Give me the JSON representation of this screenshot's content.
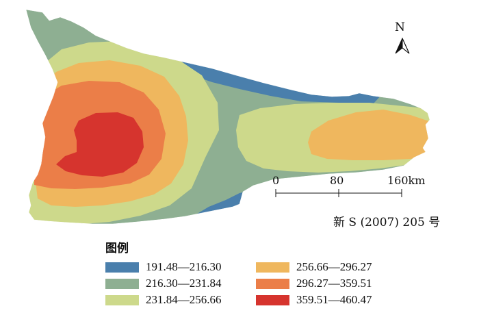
{
  "north_arrow": {
    "label": "N"
  },
  "scale_bar": {
    "ticks": [
      "0",
      "80",
      "160km"
    ]
  },
  "map_number": "新 S (2007) 205 号",
  "legend": {
    "title": "图例",
    "classes": [
      {
        "label": "191.48—216.30",
        "color": "#4a7fac"
      },
      {
        "label": "216.30—231.84",
        "color": "#8eaf92"
      },
      {
        "label": "231.84—256.66",
        "color": "#cdd98b"
      },
      {
        "label": "256.66—296.27",
        "color": "#efb75e"
      },
      {
        "label": "296.27—359.51",
        "color": "#eb7e48"
      },
      {
        "label": "359.51—460.47",
        "color": "#d6342e"
      }
    ]
  }
}
